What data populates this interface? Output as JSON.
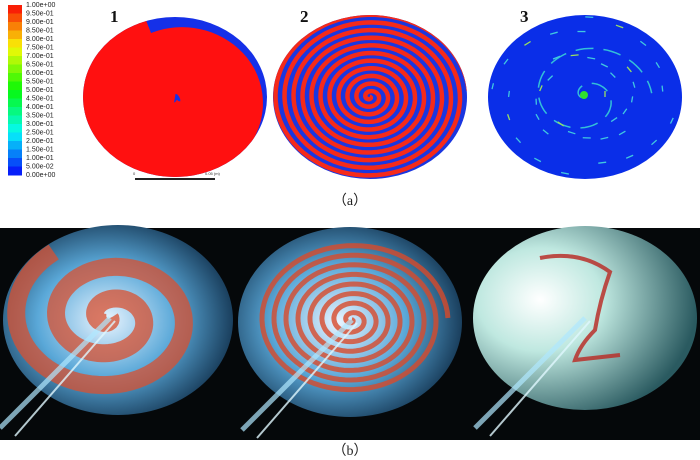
{
  "colorbar": {
    "labels": [
      "1.00e+00",
      "9.50e-01",
      "9.00e-01",
      "8.50e-01",
      "8.00e-01",
      "7.50e-01",
      "7.00e-01",
      "6.50e-01",
      "6.00e-01",
      "5.50e-01",
      "5.00e-01",
      "4.50e-01",
      "4.00e-01",
      "3.50e-01",
      "3.00e-01",
      "2.50e-01",
      "2.00e-01",
      "1.50e-01",
      "1.00e-01",
      "5.00e-02",
      "0.00e+00"
    ]
  },
  "panels": [
    {
      "label": "1"
    },
    {
      "label": "2"
    },
    {
      "label": "3"
    }
  ],
  "scale_bar": {
    "start": "0",
    "end": "0.05 (m)"
  },
  "captions": {
    "a": "（a）",
    "b": "（b）"
  }
}
